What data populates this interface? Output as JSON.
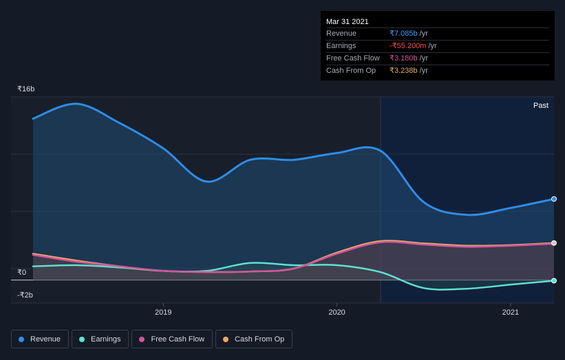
{
  "chart_data": {
    "type": "area",
    "x_ticks": [
      "2019",
      "2020",
      "2021"
    ],
    "y_ticks": [
      "₹16b",
      "₹0",
      "-₹2b"
    ],
    "ylim": [
      -2,
      16
    ],
    "past_label": "Past",
    "series": [
      {
        "name": "Revenue",
        "color": "#2e8de6",
        "x": [
          2018.25,
          2018.5,
          2018.75,
          2019.0,
          2019.25,
          2019.5,
          2019.75,
          2020.0,
          2020.25,
          2020.5,
          2020.75,
          2021.0,
          2021.25
        ],
        "values": [
          14.1,
          15.4,
          13.7,
          11.5,
          8.6,
          10.5,
          10.5,
          11.1,
          11.3,
          6.8,
          5.7,
          6.3,
          7.085
        ]
      },
      {
        "name": "Earnings",
        "color": "#5ee0d0",
        "x": [
          2018.25,
          2018.5,
          2018.75,
          2019.0,
          2019.25,
          2019.5,
          2019.75,
          2020.0,
          2020.25,
          2020.5,
          2020.75,
          2021.0,
          2021.25
        ],
        "values": [
          1.2,
          1.3,
          1.1,
          0.8,
          0.8,
          1.5,
          1.3,
          1.3,
          0.7,
          -0.7,
          -0.75,
          -0.4,
          -0.0552
        ]
      },
      {
        "name": "Free Cash Flow",
        "color": "#d1559b",
        "x": [
          2018.25,
          2018.5,
          2018.75,
          2019.0,
          2019.25,
          2019.5,
          2019.75,
          2020.0,
          2020.25,
          2020.5,
          2020.75,
          2021.0,
          2021.25
        ],
        "values": [
          2.2,
          1.6,
          1.2,
          0.8,
          0.7,
          0.75,
          1.0,
          2.3,
          3.3,
          3.1,
          2.9,
          3.0,
          3.18
        ]
      },
      {
        "name": "Cash From Op",
        "color": "#e8a866",
        "x": [
          2018.25,
          2018.5,
          2018.75,
          2019.0,
          2019.25,
          2019.5,
          2019.75,
          2020.0,
          2020.25,
          2020.5,
          2020.75,
          2021.0,
          2021.25
        ],
        "values": [
          2.3,
          1.7,
          1.2,
          0.8,
          0.7,
          0.75,
          1.0,
          2.4,
          3.4,
          3.2,
          3.0,
          3.05,
          3.238
        ]
      }
    ]
  },
  "tooltip": {
    "date": "Mar 31 2021",
    "rows": [
      {
        "label": "Revenue",
        "value": "₹7.085b",
        "unit": "/yr",
        "color": "#3aa0ff"
      },
      {
        "label": "Earnings",
        "value": "-₹55.200m",
        "unit": "/yr",
        "color": "#ff4d4d"
      },
      {
        "label": "Free Cash Flow",
        "value": "₹3.180b",
        "unit": "/yr",
        "color": "#d1559b"
      },
      {
        "label": "Cash From Op",
        "value": "₹3.238b",
        "unit": "/yr",
        "color": "#e8a866"
      }
    ]
  },
  "legend": [
    {
      "label": "Revenue",
      "color": "#2e8de6"
    },
    {
      "label": "Earnings",
      "color": "#5ee0d0"
    },
    {
      "label": "Free Cash Flow",
      "color": "#d1559b"
    },
    {
      "label": "Cash From Op",
      "color": "#e8a866"
    }
  ]
}
